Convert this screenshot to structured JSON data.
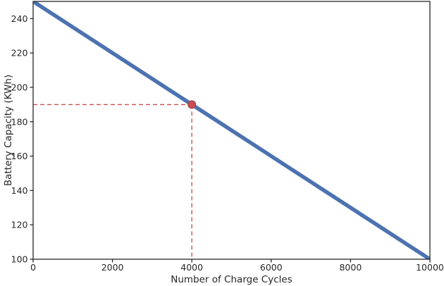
{
  "chart_data": {
    "type": "line",
    "title": "",
    "xlabel": "Number of Charge Cycles",
    "ylabel": "Battery Capacity (KWh)",
    "xlim": [
      0,
      10000
    ],
    "ylim": [
      100,
      250
    ],
    "xticks": [
      0,
      2000,
      4000,
      6000,
      8000,
      10000
    ],
    "yticks": [
      100,
      120,
      140,
      160,
      180,
      200,
      220,
      240
    ],
    "grid": false,
    "legend": null,
    "series": [
      {
        "name": "battery-capacity-line",
        "x": [
          0,
          10000
        ],
        "y": [
          250,
          100
        ],
        "color": "#4C72B0",
        "linewidth": 5.5,
        "style": "solid"
      }
    ],
    "highlight_point": {
      "x": 4000,
      "y": 190,
      "marker_color": "#C44E52",
      "marker_edge_color": "#A93A40",
      "radius": 5.5,
      "guide_color": "#C85055",
      "guide_style": "dashed",
      "guide_width": 1.4
    },
    "axes": {
      "spine_color": "#262626",
      "spine_width": 1.3,
      "tick_color": "#262626",
      "tick_length": 4.5,
      "label_color": "#262626",
      "background": "#FFFFFF"
    }
  }
}
